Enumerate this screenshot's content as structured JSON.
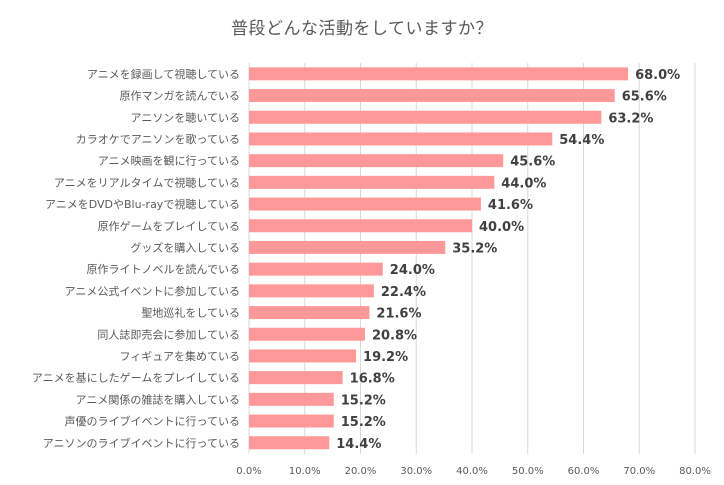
{
  "chart_data": {
    "type": "bar",
    "orientation": "horizontal",
    "title": "普段どんな活動をしていますか？",
    "categories": [
      "アニメを録画して視聴している",
      "原作マンガを読んでいる",
      "アニソンを聴いている",
      "カラオケでアニソンを歌っている",
      "アニメ映画を観に行っている",
      "アニメをリアルタイムで視聴している",
      "アニメをDVDやBlu-rayで視聴している",
      "原作ゲームをプレイしている",
      "グッズを購入している",
      "原作ライトノベルを読んでいる",
      "アニメ公式イベントに参加している",
      "聖地巡礼をしている",
      "同人誌即売会に参加している",
      "フィギュアを集めている",
      "アニメを基にしたゲームをプレイしている",
      "アニメ関係の雑誌を購入している",
      "声優のライブイベントに行っている",
      "アニソンのライブイベントに行っている"
    ],
    "values": [
      68.0,
      65.6,
      63.2,
      54.4,
      45.6,
      44.0,
      41.6,
      40.0,
      35.2,
      24.0,
      22.4,
      21.6,
      20.8,
      19.2,
      16.8,
      15.2,
      15.2,
      14.4
    ],
    "value_labels": [
      "68.0%",
      "65.6%",
      "63.2%",
      "54.4%",
      "45.6%",
      "44.0%",
      "41.6%",
      "40.0%",
      "35.2%",
      "24.0%",
      "22.4%",
      "21.6%",
      "20.8%",
      "19.2%",
      "16.8%",
      "15.2%",
      "15.2%",
      "14.4%"
    ],
    "xlim": [
      0,
      80
    ],
    "x_ticks": [
      0,
      10,
      20,
      30,
      40,
      50,
      60,
      70,
      80
    ],
    "x_tick_labels": [
      "0.0%",
      "10.0%",
      "20.0%",
      "30.0%",
      "40.0%",
      "50.0%",
      "60.0%",
      "70.0%",
      "80.0%"
    ],
    "grid": true,
    "legend": "none",
    "bar_color": "#ff9999",
    "grid_color": "#d9d9d9",
    "text_color": "#595959",
    "value_label_color": "#404040"
  }
}
